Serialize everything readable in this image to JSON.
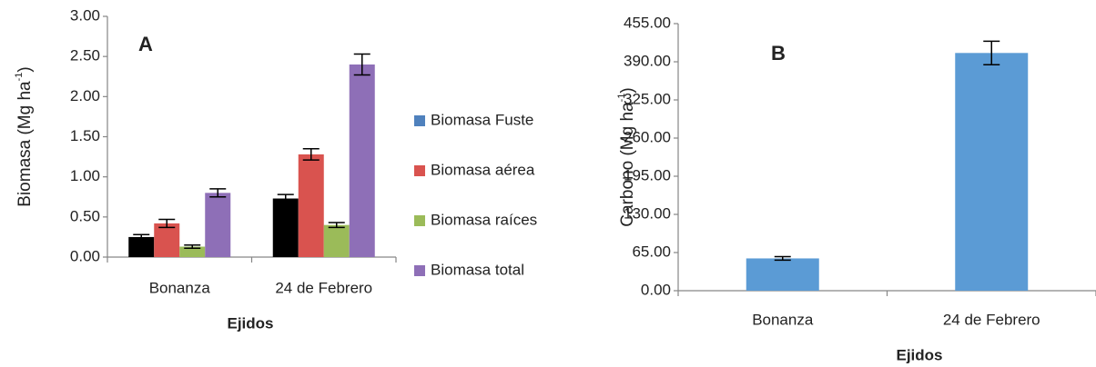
{
  "chart_data": [
    {
      "type": "bar",
      "title": "A",
      "y_label": {
        "text": "Biomasa (Mg ha",
        "sup": "-1",
        "end": ")"
      },
      "x_label": "Ejidos",
      "categories": [
        "Bonanza",
        "24 de Febrero"
      ],
      "series": [
        {
          "name": "Biomasa Fuste",
          "color": "#000000",
          "legend_color": "#4f81bd",
          "values": [
            0.25,
            0.73
          ],
          "errors": [
            0.03,
            0.05
          ]
        },
        {
          "name": "Biomasa aérea",
          "color": "#d9534f",
          "values": [
            0.42,
            1.28
          ],
          "errors": [
            0.05,
            0.07
          ]
        },
        {
          "name": "Biomasa raíces",
          "color": "#9bbb59",
          "values": [
            0.13,
            0.4
          ],
          "errors": [
            0.02,
            0.03
          ]
        },
        {
          "name": "Biomasa total",
          "color": "#8e6fb7",
          "values": [
            0.8,
            2.4
          ],
          "errors": [
            0.05,
            0.13
          ]
        }
      ],
      "ylim": [
        0,
        3
      ],
      "yticks": [
        {
          "value": 0,
          "label": "0.00"
        },
        {
          "value": 0.5,
          "label": "0.50"
        },
        {
          "value": 1,
          "label": "1.00"
        },
        {
          "value": 1.5,
          "label": "1.50"
        },
        {
          "value": 2,
          "label": "2.00"
        },
        {
          "value": 2.5,
          "label": "2.50"
        },
        {
          "value": 3,
          "label": "3.00"
        }
      ],
      "legend": "right"
    },
    {
      "type": "bar",
      "title": "B",
      "y_label": {
        "text": "Carbono (Mg ha",
        "sup": "-1",
        "end": ")"
      },
      "x_label": "Ejidos",
      "categories": [
        "Bonanza",
        "24 de Febrero"
      ],
      "values": [
        55,
        405
      ],
      "errors": [
        3,
        20
      ],
      "color": "#5b9bd5",
      "ylim": [
        0,
        455
      ],
      "yticks": [
        {
          "value": 0,
          "label": "0.00"
        },
        {
          "value": 65,
          "label": "65.00"
        },
        {
          "value": 130,
          "label": "130.00"
        },
        {
          "value": 195,
          "label": "195.00"
        },
        {
          "value": 260,
          "label": "260.00"
        },
        {
          "value": 325,
          "label": "325.00"
        },
        {
          "value": 390,
          "label": "390.00"
        },
        {
          "value": 455,
          "label": "455.00"
        }
      ]
    }
  ]
}
